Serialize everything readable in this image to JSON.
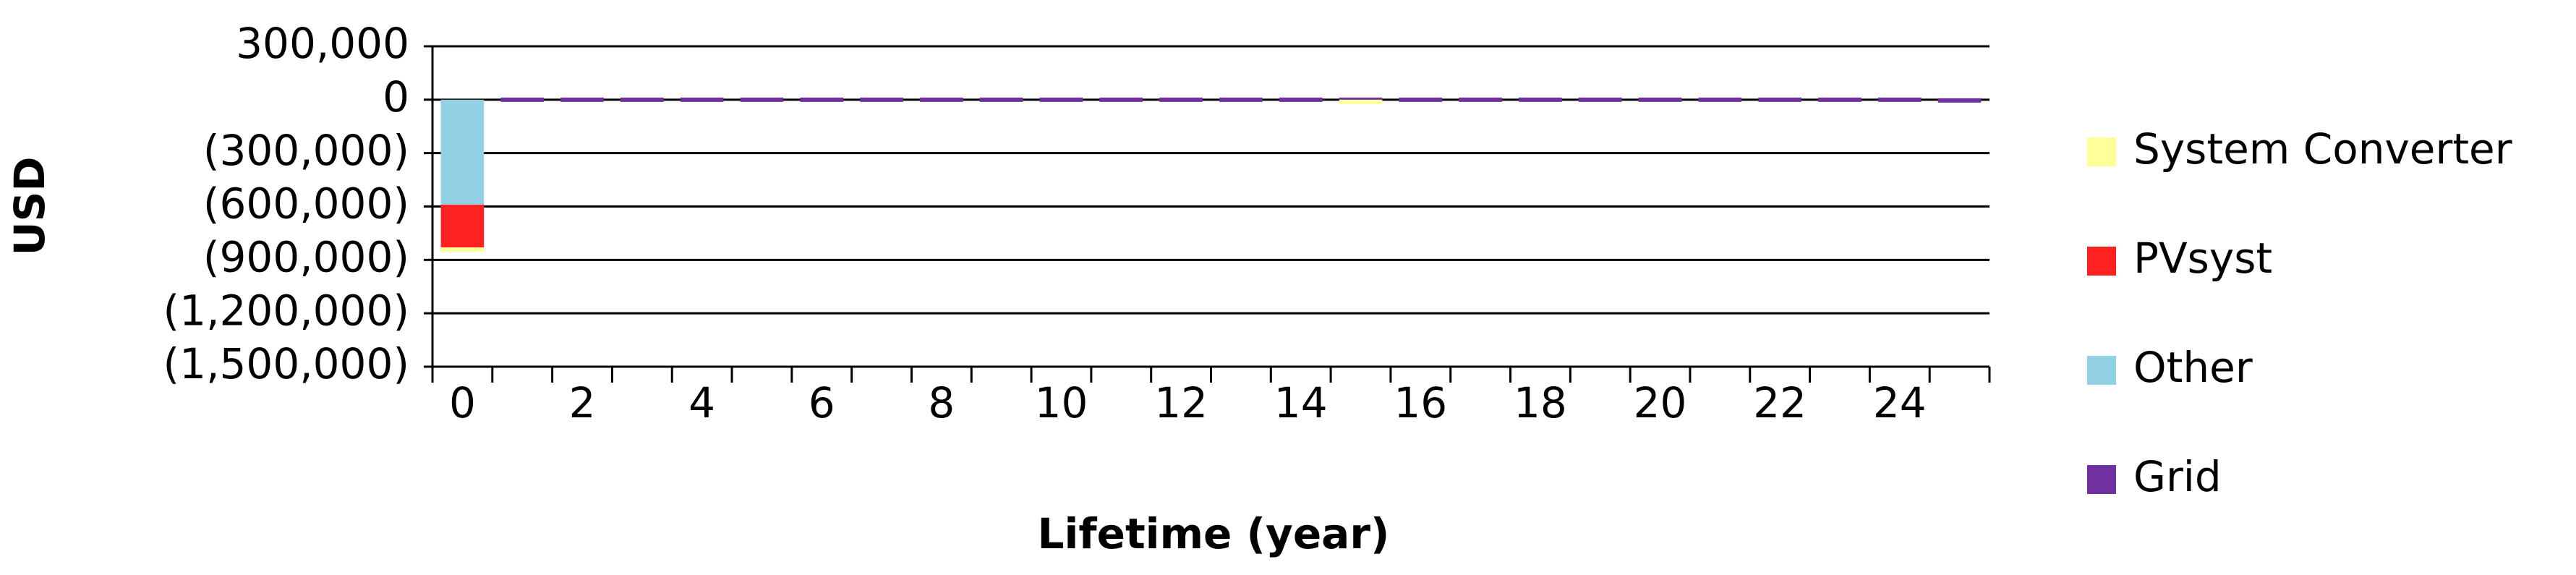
{
  "chart_data": {
    "type": "stacked-bar",
    "x_label": "Lifetime (year)",
    "y_label": "USD",
    "categories": [
      "0",
      null,
      "2",
      null,
      "4",
      null,
      "6",
      null,
      "8",
      null,
      "10",
      null,
      "12",
      null,
      "14",
      null,
      "16",
      null,
      "18",
      null,
      "20",
      null,
      "22",
      null,
      "24",
      null
    ],
    "series": [
      {
        "name": "System Converter",
        "color": "#ffff99",
        "values": [
          -20000,
          0,
          0,
          0,
          0,
          0,
          0,
          0,
          0,
          0,
          0,
          0,
          0,
          0,
          0,
          -12000,
          0,
          0,
          0,
          0,
          0,
          0,
          0,
          0,
          0,
          0
        ]
      },
      {
        "name": "PVsyst",
        "color": "#ff2020",
        "values": [
          -240000,
          0,
          0,
          0,
          0,
          0,
          0,
          0,
          0,
          0,
          0,
          0,
          0,
          0,
          0,
          0,
          0,
          0,
          0,
          0,
          0,
          0,
          0,
          0,
          0,
          0
        ]
      },
      {
        "name": "Other",
        "color": "#92d0e3",
        "values": [
          -590000,
          0,
          0,
          0,
          0,
          0,
          0,
          0,
          0,
          0,
          0,
          0,
          0,
          0,
          0,
          0,
          0,
          0,
          0,
          0,
          0,
          0,
          0,
          0,
          0,
          0
        ]
      },
      {
        "name": "Grid",
        "color": "#7030a0",
        "values": [
          0,
          12000,
          12000,
          12000,
          12000,
          12000,
          12000,
          12000,
          12000,
          12000,
          12000,
          12000,
          12000,
          12000,
          12000,
          12000,
          12000,
          12000,
          12000,
          12000,
          12000,
          12000,
          12000,
          12000,
          12000,
          8000
        ]
      }
    ],
    "ylim": [
      -1500000,
      300000
    ],
    "yticks": [
      {
        "value": 300000,
        "label": "300,000"
      },
      0,
      {
        "value": -300000,
        "label": "(300,000)"
      },
      {
        "value": -600000,
        "label": "(600,000)"
      },
      {
        "value": -900000,
        "label": "(900,000)"
      },
      {
        "value": -1200000,
        "label": "(1,200,000)"
      },
      {
        "value": -1500000,
        "label": "(1,500,000)"
      }
    ],
    "grid": true,
    "legend": "right"
  }
}
